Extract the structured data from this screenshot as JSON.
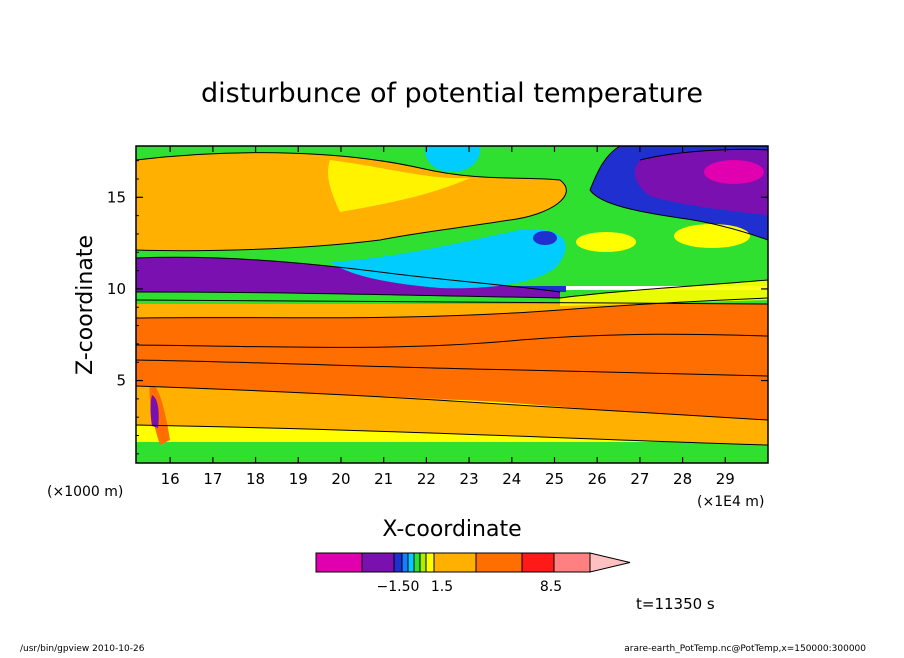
{
  "chart_data": {
    "type": "heatmap",
    "title": "disturbunce of potential temperature",
    "xlabel": "X-coordinate",
    "ylabel": "Z-coordinate",
    "x_unit_left": "(×1000 m)",
    "x_unit_right": "(×1E4 m)",
    "xlim": [
      15.2,
      30.0
    ],
    "ylim": [
      0.5,
      17.8
    ],
    "x_ticks": [
      16,
      17,
      18,
      19,
      20,
      21,
      22,
      23,
      24,
      25,
      26,
      27,
      28,
      29
    ],
    "y_ticks": [
      5,
      10,
      15
    ],
    "colorbar": {
      "colors": [
        "#e000b0",
        "#7a10b0",
        "#2030d0",
        "#1080ff",
        "#00ccff",
        "#30e030",
        "#aaee00",
        "#ffff00",
        "#ffb000",
        "#ff6e00",
        "#ff1a1a",
        "#ff8080",
        "#ffc0c0"
      ],
      "labels": [
        "−1.50",
        "1.5",
        "8.5"
      ]
    },
    "time_label": "t=11350 s"
  },
  "footer": {
    "left": "/usr/bin/gpview   2010-10-26",
    "right": "arare-earth_PotTemp.nc@PotTemp,x=150000:300000"
  }
}
